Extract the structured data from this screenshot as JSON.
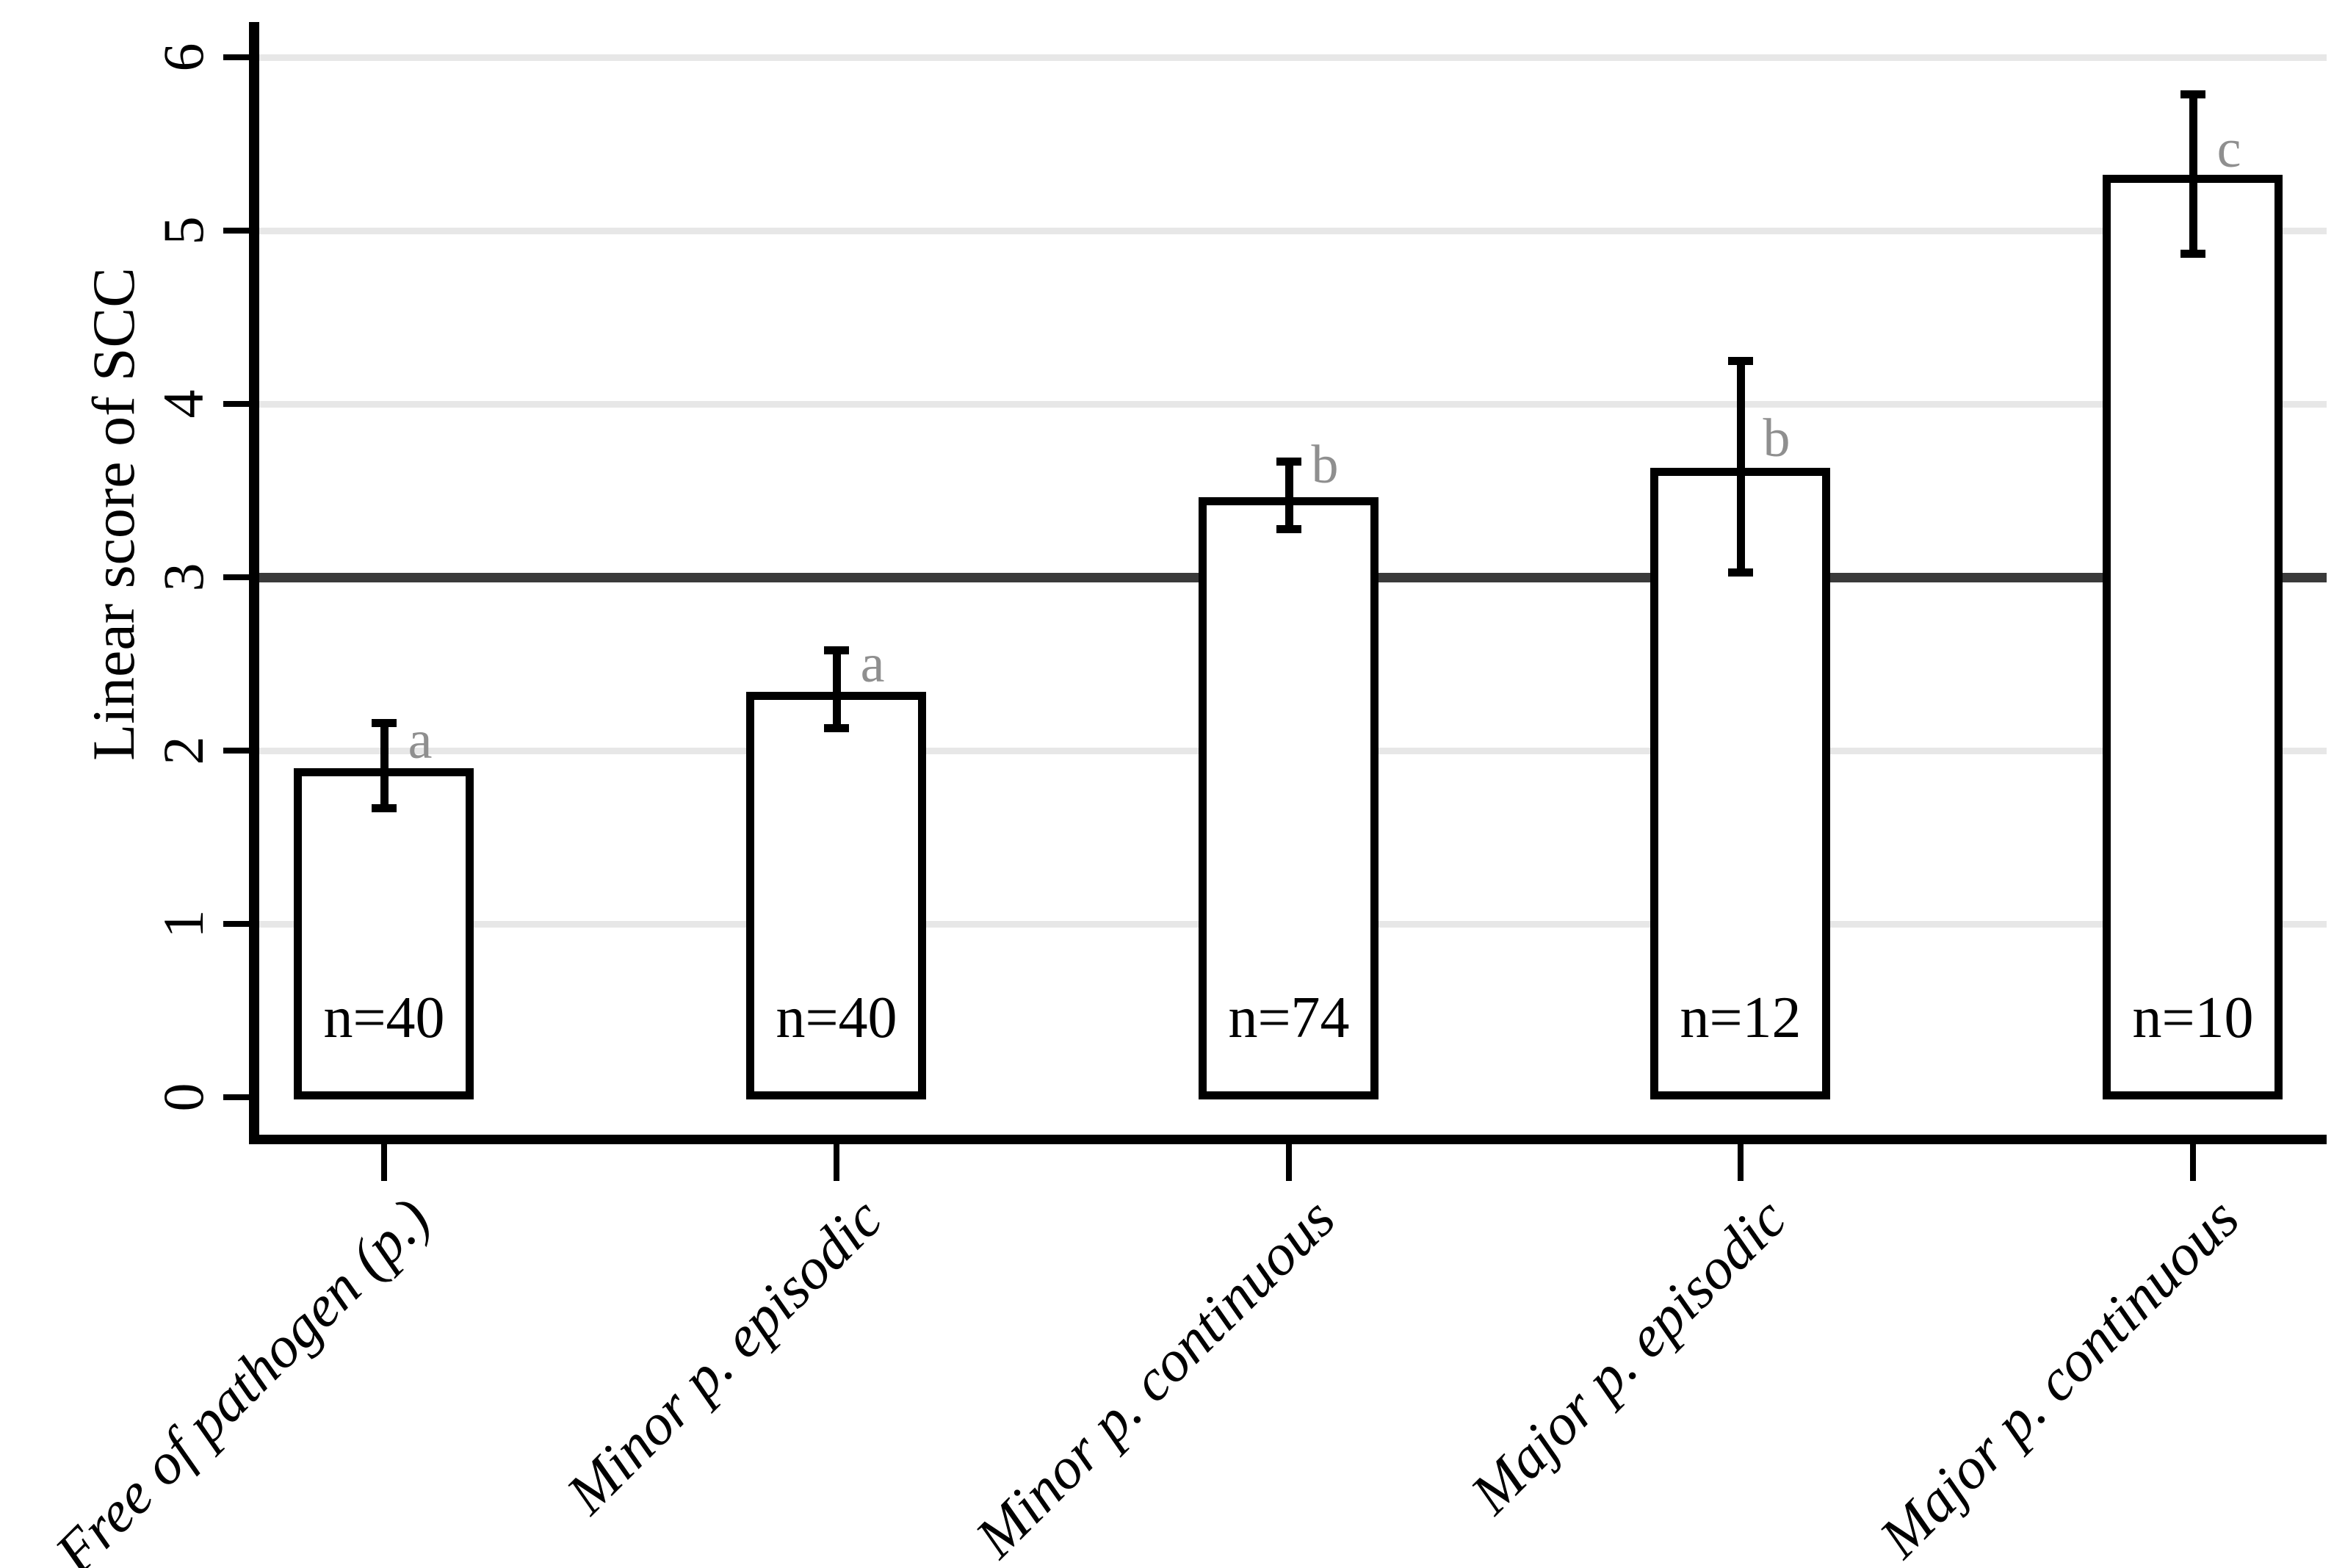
{
  "figure": {
    "background": "#ffffff",
    "colors": {
      "bar_fill": "#ffffff",
      "bar_border": "#000000",
      "axis": "#000000",
      "gridline": "#e7e7e7",
      "reference_line": "#3a3a3a",
      "significance_letter": "#8f8f8f",
      "text": "#000000"
    }
  },
  "chart_data": {
    "type": "bar",
    "title": "",
    "xlabel": "",
    "ylabel": "Linear score of SCC",
    "ylim": [
      0,
      6
    ],
    "yticks": [
      "0",
      "1",
      "2",
      "3",
      "4",
      "5",
      "6"
    ],
    "grid": "horizontal light gray at each y tick",
    "legend": "none",
    "reference_line_y": 3,
    "categories": [
      "Free of pathogen (p.)",
      "Minor p. episodic",
      "Minor p. continuous",
      "Major p. episodic",
      "Major p. continuous"
    ],
    "series": [
      {
        "name": "Mean linear score of SCC",
        "values": [
          1.9,
          2.34,
          3.46,
          3.63,
          5.32
        ]
      }
    ],
    "error_bars": {
      "low": [
        1.67,
        2.13,
        3.28,
        3.03,
        4.87
      ],
      "high": [
        2.16,
        2.58,
        3.67,
        4.25,
        5.79
      ]
    },
    "sample_size_labels": [
      "n=40",
      "n=40",
      "n=74",
      "n=12",
      "n=10"
    ],
    "significance_letters": [
      "a",
      "a",
      "b",
      "b",
      "c"
    ],
    "significance_letter_y": [
      2.06,
      2.5,
      3.65,
      3.8,
      5.47
    ],
    "bar_style": "white fill, thick black outline",
    "x_label_rotation_deg": 45,
    "y_tick_label_rotation_deg": 90
  }
}
